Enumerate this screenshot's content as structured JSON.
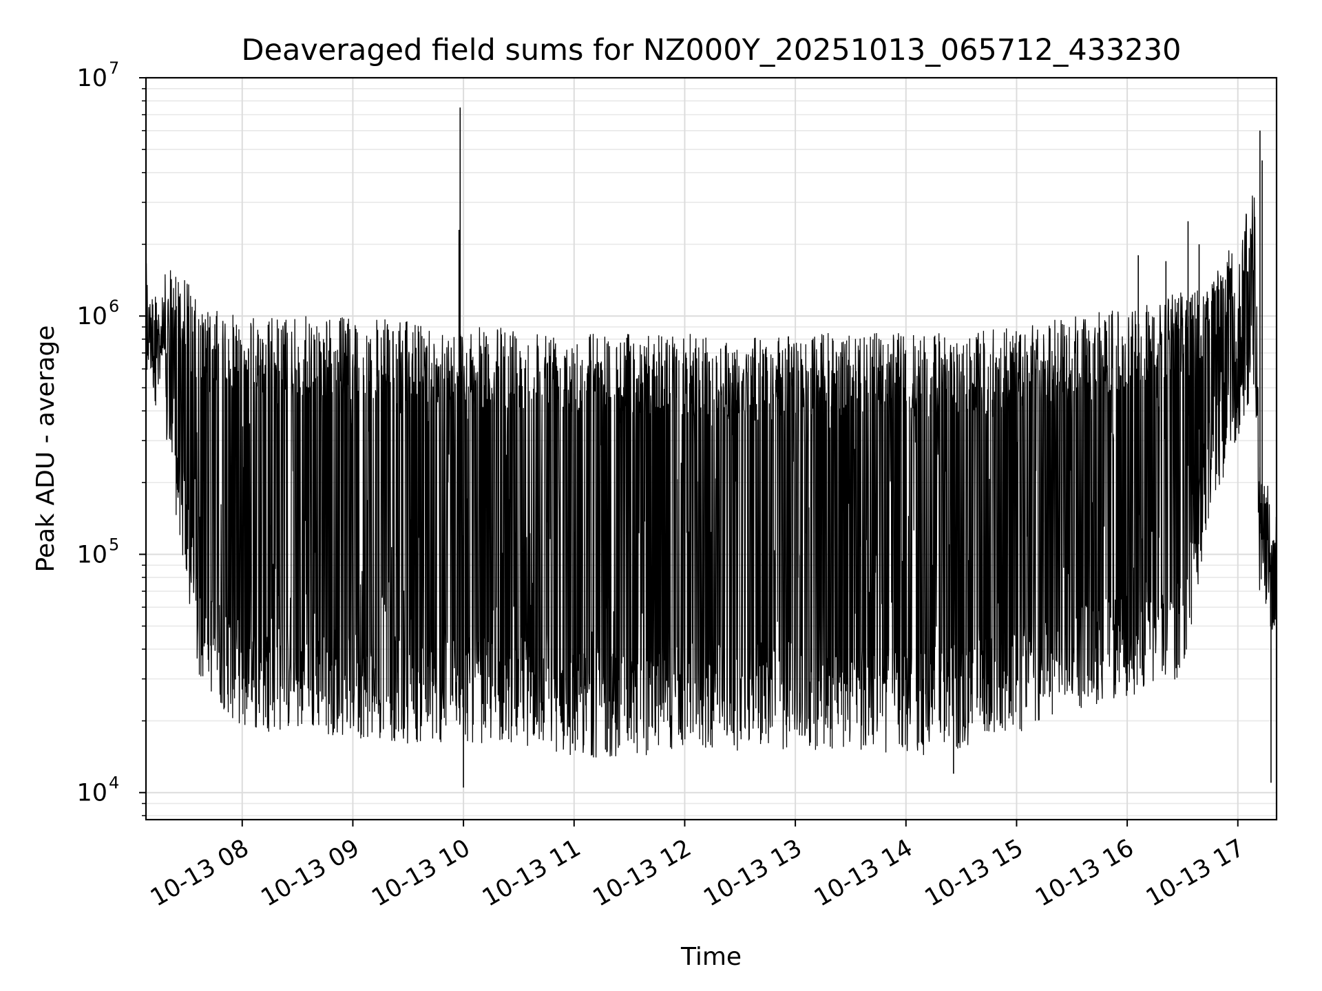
{
  "chart_data": {
    "type": "line",
    "title": "Deaveraged field sums for NZ000Y_20251013_065712_433230",
    "xlabel": "Time",
    "ylabel": "Peak ADU - average",
    "yscale": "log",
    "ylim": [
      7700,
      10000000
    ],
    "xlim_hours": [
      7.13,
      17.35
    ],
    "grid": true,
    "line_color": "#000000",
    "x_ticks": [
      {
        "hour": 8,
        "label": "10-13 08"
      },
      {
        "hour": 9,
        "label": "10-13 09"
      },
      {
        "hour": 10,
        "label": "10-13 10"
      },
      {
        "hour": 11,
        "label": "10-13 11"
      },
      {
        "hour": 12,
        "label": "10-13 12"
      },
      {
        "hour": 13,
        "label": "10-13 13"
      },
      {
        "hour": 14,
        "label": "10-13 14"
      },
      {
        "hour": 15,
        "label": "10-13 15"
      },
      {
        "hour": 16,
        "label": "10-13 16"
      },
      {
        "hour": 17,
        "label": "10-13 17"
      }
    ],
    "y_ticks": [
      {
        "value": 10000,
        "base": "10",
        "exp": "4"
      },
      {
        "value": 100000,
        "base": "10",
        "exp": "5"
      },
      {
        "value": 1000000,
        "base": "10",
        "exp": "6"
      },
      {
        "value": 10000000,
        "base": "10",
        "exp": "7"
      }
    ],
    "series": [
      {
        "name": "Deaveraged field sums",
        "envelope": [
          {
            "hour": 7.13,
            "high": 1200000,
            "low": 600000
          },
          {
            "hour": 7.3,
            "high": 1500000,
            "low": 300000
          },
          {
            "hour": 7.45,
            "high": 1700000,
            "low": 100000
          },
          {
            "hour": 7.6,
            "high": 1100000,
            "low": 30000
          },
          {
            "hour": 8.0,
            "high": 1000000,
            "low": 18000
          },
          {
            "hour": 8.5,
            "high": 1000000,
            "low": 18000
          },
          {
            "hour": 9.0,
            "high": 1000000,
            "low": 17000
          },
          {
            "hour": 9.5,
            "high": 950000,
            "low": 16000
          },
          {
            "hour": 10.0,
            "high": 900000,
            "low": 16000
          },
          {
            "hour": 10.5,
            "high": 900000,
            "low": 16000
          },
          {
            "hour": 11.0,
            "high": 900000,
            "low": 14000
          },
          {
            "hour": 11.5,
            "high": 850000,
            "low": 14000
          },
          {
            "hour": 12.0,
            "high": 850000,
            "low": 15000
          },
          {
            "hour": 12.5,
            "high": 800000,
            "low": 15000
          },
          {
            "hour": 13.0,
            "high": 850000,
            "low": 15000
          },
          {
            "hour": 13.5,
            "high": 850000,
            "low": 15000
          },
          {
            "hour": 14.0,
            "high": 850000,
            "low": 14000
          },
          {
            "hour": 14.5,
            "high": 850000,
            "low": 15000
          },
          {
            "hour": 15.0,
            "high": 900000,
            "low": 17000
          },
          {
            "hour": 15.5,
            "high": 1000000,
            "low": 22000
          },
          {
            "hour": 16.0,
            "high": 1100000,
            "low": 25000
          },
          {
            "hour": 16.5,
            "high": 1300000,
            "low": 30000
          },
          {
            "hour": 16.75,
            "high": 1500000,
            "low": 150000
          },
          {
            "hour": 17.0,
            "high": 2200000,
            "low": 300000
          },
          {
            "hour": 17.15,
            "high": 3500000,
            "low": 500000
          },
          {
            "hour": 17.2,
            "high": 250000,
            "low": 60000
          },
          {
            "hour": 17.35,
            "high": 150000,
            "low": 40000
          }
        ],
        "spikes": [
          {
            "hour": 9.97,
            "value": 7500000
          },
          {
            "hour": 9.96,
            "value": 2300000
          },
          {
            "hour": 10.0,
            "value": 10500
          },
          {
            "hour": 17.2,
            "value": 6000000
          },
          {
            "hour": 17.22,
            "value": 4500000
          },
          {
            "hour": 16.55,
            "value": 2500000
          },
          {
            "hour": 17.3,
            "value": 11000
          },
          {
            "hour": 14.43,
            "value": 12000
          },
          {
            "hour": 16.1,
            "value": 1800000
          },
          {
            "hour": 16.35,
            "value": 1700000
          },
          {
            "hour": 16.65,
            "value": 2000000
          }
        ]
      }
    ]
  }
}
